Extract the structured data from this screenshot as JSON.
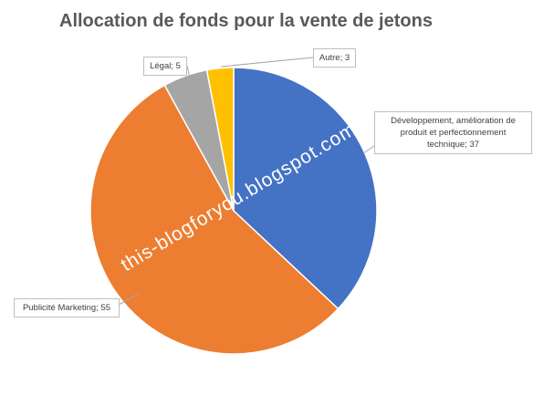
{
  "chart_data": {
    "type": "pie",
    "title": "Allocation de fonds pour la vente de jetons",
    "categories": [
      "Développement, amélioration de produit et perfectionnement technique",
      "Publicité Marketing",
      "Légal",
      "Autre"
    ],
    "values": [
      37,
      55,
      5,
      3
    ],
    "value_labels": [
      "Développement, amélioration de produit et perfectionnement technique; 37",
      "Publicité Marketing; 55",
      "Légal; 5",
      "Autre; 3"
    ],
    "colors": [
      "#4472c4",
      "#ed7d31",
      "#a5a5a5",
      "#ffc000"
    ],
    "watermark": "this-blogforyou.blogspot.com/"
  }
}
